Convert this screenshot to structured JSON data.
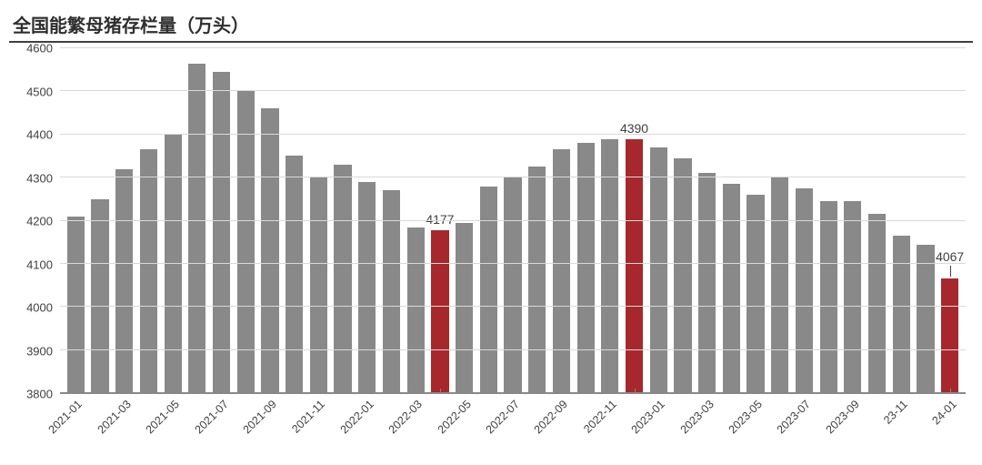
{
  "chart": {
    "type": "bar",
    "title": "全国能繁母猪存栏量（万头）",
    "title_fontsize": 20,
    "title_color": "#2f2f2f",
    "background_color": "#ffffff",
    "grid_color": "#d9d9d9",
    "axis_line_color": "#888888",
    "tick_font_color": "#404040",
    "tick_fontsize": 13,
    "xlabel_fontsize": 12.5,
    "xlabel_rotation_deg": -45,
    "ylim": [
      3800,
      4600
    ],
    "ytick_step": 100,
    "yticks": [
      3800,
      3900,
      4000,
      4100,
      4200,
      4300,
      4400,
      4500,
      4600
    ],
    "bar_width_ratio": 0.72,
    "default_bar_color": "#898989",
    "highlight_bar_color": "#a6282c",
    "data_label_fontsize": 14,
    "categories": [
      "2021-01",
      "2021-02",
      "2021-03",
      "2021-04",
      "2021-05",
      "2021-06",
      "2021-07",
      "2021-08",
      "2021-09",
      "2021-10",
      "2021-11",
      "2021-12",
      "2022-01",
      "2022-02",
      "2022-03",
      "2022-04",
      "2022-05",
      "2022-06",
      "2022-07",
      "2022-08",
      "2022-09",
      "2022-10",
      "2022-11",
      "2022-12",
      "2023-01",
      "2023-02",
      "2023-03",
      "2023-04",
      "2023-05",
      "2023-06",
      "2023-07",
      "2023-08",
      "2023-09",
      "2023-10",
      "2023-11",
      "2023-12",
      "2024-01"
    ],
    "x_tick_labels": [
      "2021-01",
      null,
      "2021-03",
      null,
      "2021-05",
      null,
      "2021-07",
      null,
      "2021-09",
      null,
      "2021-11",
      null,
      "2022-01",
      null,
      "2022-03",
      null,
      "2022-05",
      null,
      "2022-07",
      null,
      "2022-09",
      null,
      "2022-11",
      null,
      "2023-01",
      null,
      "2023-03",
      null,
      "2023-05",
      null,
      "2023-07",
      null,
      "2023-09",
      null,
      "23-11",
      null,
      "24-01"
    ],
    "values": [
      4210,
      4250,
      4320,
      4365,
      4400,
      4565,
      4545,
      4500,
      4460,
      4350,
      4300,
      4330,
      4290,
      4270,
      4185,
      4177,
      4195,
      4280,
      4300,
      4325,
      4365,
      4380,
      4390,
      4390,
      4370,
      4345,
      4310,
      4285,
      4260,
      4300,
      4275,
      4245,
      4245,
      4215,
      4165,
      4145,
      4067
    ],
    "highlight_indices": [
      15,
      23,
      36
    ],
    "data_labels": {
      "15": "4177",
      "23": "4390",
      "36": "4067"
    }
  }
}
